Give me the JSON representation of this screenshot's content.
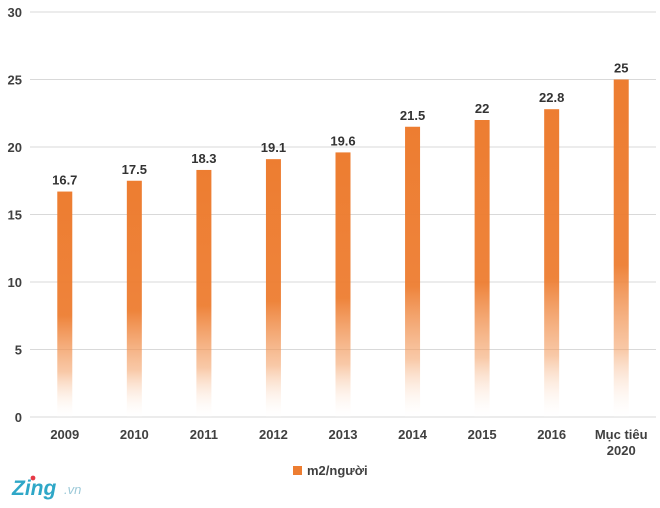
{
  "chart_data": {
    "type": "bar",
    "categories": [
      "2009",
      "2010",
      "2011",
      "2012",
      "2013",
      "2014",
      "2015",
      "2016",
      [
        "Mục tiêu",
        "2020"
      ]
    ],
    "series": [
      {
        "name": "m2/người",
        "values": [
          16.7,
          17.5,
          18.3,
          19.1,
          19.6,
          21.5,
          22,
          22.8,
          25
        ]
      }
    ],
    "data_labels": [
      "16.7",
      "17.5",
      "18.3",
      "19.1",
      "19.6",
      "21.5",
      "22",
      "22.8",
      "25"
    ],
    "title": "",
    "xlabel": "",
    "ylabel": "",
    "ylim": [
      0,
      30
    ],
    "yticks": [
      0,
      5,
      10,
      15,
      20,
      25,
      30
    ],
    "grid": true,
    "legend_position": "bottom",
    "bar_color": "#ED7D31",
    "bar_fade": "gradient to white at bottom"
  },
  "watermark": {
    "brand": "Zing",
    "suffix": ".vn",
    "color_primary": "#2FA7C7",
    "color_dot": "#E63946"
  }
}
